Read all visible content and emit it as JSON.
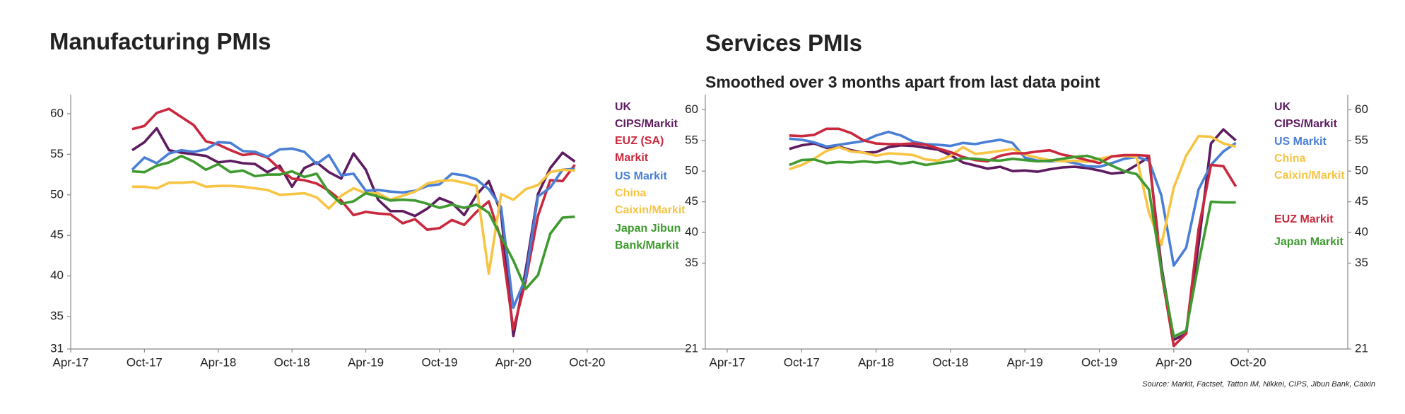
{
  "chart_data": [
    {
      "type": "line",
      "title": "Manufacturing PMIs",
      "categories": [
        "Apr-17",
        null,
        null,
        null,
        null,
        null,
        "Oct-17",
        null,
        null,
        null,
        null,
        null,
        "Apr-18",
        null,
        null,
        null,
        null,
        null,
        "Oct-18",
        null,
        null,
        null,
        null,
        null,
        "Apr-19",
        null,
        null,
        null,
        null,
        null,
        "Oct-19",
        null,
        null,
        null,
        null,
        null,
        "Apr-20",
        null,
        null,
        null,
        null,
        null,
        "Oct-20"
      ],
      "ylim": [
        31,
        62
      ],
      "yticks": [
        31,
        35,
        40,
        45,
        50,
        55,
        60
      ],
      "series": [
        {
          "name": "UK CIPS/Markit",
          "color": "#5e1b60",
          "values": [
            null,
            null,
            null,
            null,
            null,
            55.5,
            56.5,
            58.2,
            55.5,
            55.2,
            55.0,
            54.8,
            54.0,
            54.2,
            53.9,
            53.8,
            52.8,
            53.6,
            51.0,
            53.3,
            54.0,
            52.8,
            52.0,
            55.1,
            53.1,
            49.4,
            48.0,
            48.0,
            47.4,
            48.3,
            49.6,
            49.0,
            47.5,
            50.0,
            51.7,
            47.8,
            32.6,
            40.7,
            50.1,
            53.3,
            55.2,
            54.1,
            null
          ]
        },
        {
          "name": "EUZ (SA) Markit",
          "color": "#c9283d",
          "values": [
            null,
            null,
            null,
            null,
            null,
            58.1,
            58.5,
            60.1,
            60.6,
            59.6,
            58.6,
            56.6,
            56.2,
            55.5,
            54.9,
            55.1,
            54.6,
            53.2,
            52.0,
            51.8,
            51.4,
            50.5,
            49.3,
            47.5,
            47.9,
            47.7,
            47.6,
            46.5,
            47.0,
            45.7,
            45.9,
            46.9,
            46.3,
            47.9,
            49.2,
            44.5,
            33.4,
            39.4,
            47.4,
            51.8,
            51.7,
            53.7,
            null
          ]
        },
        {
          "name": "US Markit",
          "color": "#4a7fd6",
          "values": [
            null,
            null,
            null,
            null,
            null,
            53.1,
            54.6,
            53.9,
            55.1,
            55.5,
            55.3,
            55.6,
            56.5,
            56.4,
            55.4,
            55.3,
            54.7,
            55.6,
            55.7,
            55.3,
            53.8,
            54.9,
            52.4,
            52.6,
            50.5,
            50.6,
            50.4,
            50.3,
            50.5,
            51.1,
            51.3,
            52.6,
            52.4,
            51.9,
            50.7,
            48.5,
            36.1,
            39.8,
            49.8,
            50.9,
            53.1,
            53.2,
            null
          ]
        },
        {
          "name": "China Caixin/Markit",
          "color": "#f7c443",
          "values": [
            null,
            null,
            null,
            null,
            null,
            51.0,
            51.0,
            50.8,
            51.5,
            51.5,
            51.6,
            51.0,
            51.1,
            51.1,
            51.0,
            50.8,
            50.6,
            50.0,
            50.1,
            50.2,
            49.7,
            48.3,
            49.9,
            50.8,
            50.2,
            50.2,
            49.4,
            49.9,
            50.4,
            51.4,
            51.7,
            51.8,
            51.5,
            51.1,
            40.3,
            50.1,
            49.4,
            50.7,
            51.2,
            52.8,
            53.1,
            53.0,
            null
          ]
        },
        {
          "name": "Japan Jibun Bank/Markit",
          "color": "#3e9a2f",
          "values": [
            null,
            null,
            null,
            null,
            null,
            52.9,
            52.8,
            53.6,
            54.0,
            54.8,
            54.1,
            53.1,
            53.8,
            52.8,
            53.0,
            52.3,
            52.5,
            52.5,
            52.9,
            52.2,
            52.6,
            50.3,
            48.9,
            49.2,
            50.2,
            49.8,
            49.3,
            49.4,
            49.3,
            48.9,
            48.4,
            48.8,
            48.4,
            48.8,
            47.8,
            44.8,
            41.9,
            38.4,
            40.1,
            45.2,
            47.2,
            47.3,
            null
          ]
        }
      ]
    },
    {
      "type": "line",
      "title": "Services PMIs",
      "subtitle": "Smoothed over 3 months apart from last data point",
      "categories": [
        "Apr-17",
        null,
        null,
        null,
        null,
        null,
        "Oct-17",
        null,
        null,
        null,
        null,
        null,
        "Apr-18",
        null,
        null,
        null,
        null,
        null,
        "Oct-18",
        null,
        null,
        null,
        null,
        null,
        "Apr-19",
        null,
        null,
        null,
        null,
        null,
        "Oct-19",
        null,
        null,
        null,
        null,
        null,
        "Apr-20",
        null,
        null,
        null,
        null,
        null,
        "Oct-20"
      ],
      "ylim": [
        21,
        62
      ],
      "yticks": [
        21,
        35,
        40,
        45,
        50,
        55,
        60
      ],
      "series": [
        {
          "name": "UK CIPS/Markit",
          "color": "#5e1b60",
          "values": [
            null,
            null,
            null,
            null,
            null,
            53.6,
            54.2,
            54.5,
            53.8,
            54.0,
            53.4,
            53.0,
            53.1,
            53.9,
            54.2,
            54.1,
            53.8,
            53.5,
            52.6,
            51.4,
            50.9,
            50.4,
            50.7,
            50.0,
            50.1,
            49.9,
            50.3,
            50.6,
            50.7,
            50.5,
            50.1,
            49.6,
            49.8,
            51.0,
            52.3,
            34.5,
            22.5,
            23.5,
            38.0,
            54.5,
            56.8,
            55.0,
            null
          ]
        },
        {
          "name": "US Markit",
          "color": "#4a7fd6",
          "values": [
            null,
            null,
            null,
            null,
            null,
            55.3,
            55.1,
            54.7,
            54.0,
            54.3,
            54.6,
            54.9,
            55.8,
            56.4,
            55.8,
            54.8,
            54.4,
            54.3,
            54.1,
            54.6,
            54.4,
            54.8,
            55.1,
            54.6,
            52.2,
            51.7,
            51.6,
            51.7,
            51.3,
            50.8,
            50.7,
            51.3,
            52.0,
            52.3,
            51.7,
            46.0,
            34.6,
            37.5,
            47.0,
            51.0,
            53.2,
            54.6,
            null
          ]
        },
        {
          "name": "China Caixin/Markit",
          "color": "#f7c443",
          "values": [
            null,
            null,
            null,
            null,
            null,
            50.3,
            51.0,
            52.0,
            53.3,
            53.9,
            53.2,
            53.0,
            52.5,
            52.9,
            52.8,
            52.6,
            51.9,
            51.7,
            52.5,
            53.9,
            52.8,
            53.0,
            53.3,
            53.6,
            52.7,
            52.2,
            51.8,
            51.6,
            51.7,
            51.5,
            52.0,
            52.4,
            52.5,
            52.3,
            43.2,
            38.0,
            47.3,
            52.5,
            55.7,
            55.6,
            54.5,
            54.0,
            null
          ]
        },
        {
          "name": "EUZ Markit",
          "color": "#c9283d",
          "values": [
            null,
            null,
            null,
            null,
            null,
            55.8,
            55.7,
            55.9,
            56.9,
            56.9,
            56.2,
            55.0,
            54.5,
            54.4,
            54.4,
            54.5,
            54.3,
            53.7,
            53.1,
            52.3,
            51.8,
            51.6,
            52.5,
            52.9,
            52.9,
            53.2,
            53.4,
            52.7,
            52.3,
            51.8,
            51.3,
            52.4,
            52.6,
            52.6,
            52.5,
            33.5,
            21.5,
            23.5,
            40.5,
            51.0,
            50.8,
            47.5,
            null
          ]
        },
        {
          "name": "Japan Markit",
          "color": "#3e9a2f",
          "values": [
            null,
            null,
            null,
            null,
            null,
            51.0,
            51.8,
            51.9,
            51.3,
            51.5,
            51.4,
            51.6,
            51.4,
            51.6,
            51.2,
            51.5,
            51.0,
            51.3,
            51.6,
            52.1,
            52.0,
            51.8,
            51.7,
            52.0,
            51.8,
            51.6,
            51.7,
            52.0,
            52.3,
            52.5,
            51.9,
            50.9,
            50.0,
            49.5,
            47.0,
            33.8,
            23.0,
            24.0,
            35.0,
            45.0,
            44.9,
            44.9,
            null
          ]
        }
      ]
    }
  ],
  "source": "Source: Markit, Factset, Tatton IM, Nikkei, CIPS, Jibun Bank, Caixin"
}
